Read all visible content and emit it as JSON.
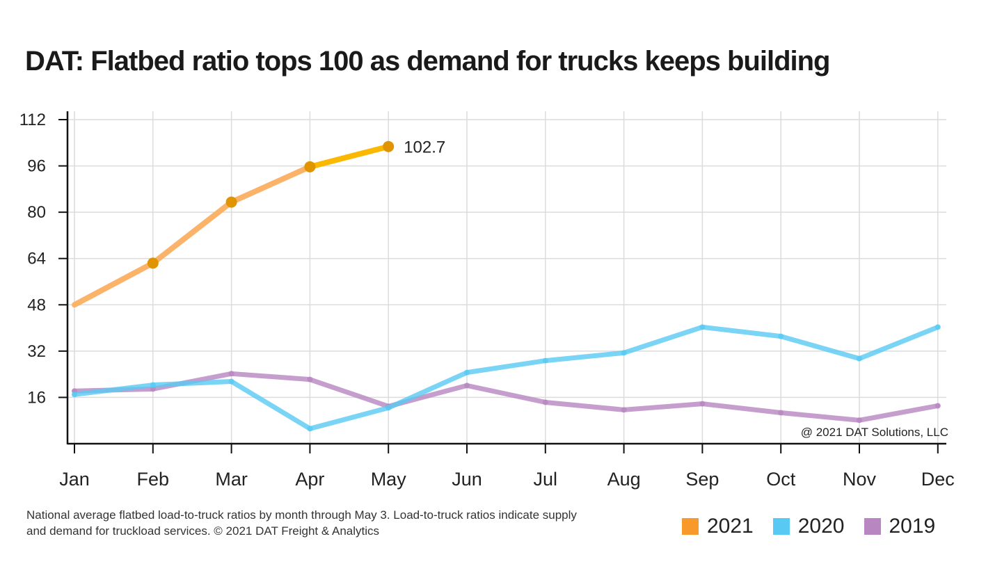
{
  "chart_data": {
    "type": "line",
    "title": "DAT: Flatbed ratio tops 100 as demand for trucks keeps building",
    "categories": [
      "Jan",
      "Feb",
      "Mar",
      "Apr",
      "May",
      "Jun",
      "Jul",
      "Aug",
      "Sep",
      "Oct",
      "Nov",
      "Dec"
    ],
    "yticks": [
      16,
      32,
      48,
      64,
      80,
      96,
      112
    ],
    "ylim": [
      0,
      112
    ],
    "grid": true,
    "legend_position": "bottom-right",
    "series": [
      {
        "name": "2021",
        "color": "#F7992B",
        "line_color": "#FBB36A",
        "highlight_color": "#FBB800",
        "marker_color": "#E09400",
        "values": [
          48,
          62.4,
          83.5,
          95.7,
          102.7,
          null,
          null,
          null,
          null,
          null,
          null,
          null
        ]
      },
      {
        "name": "2020",
        "color": "#57C9F2",
        "values": [
          17,
          20.3,
          21.5,
          5.2,
          12.4,
          24.6,
          28.7,
          31.4,
          40.3,
          37.1,
          29.4,
          40.3
        ]
      },
      {
        "name": "2019",
        "color": "#B886C1",
        "values": [
          18.2,
          18.9,
          24.2,
          22.2,
          12.9,
          20.1,
          14.3,
          11.7,
          13.8,
          10.7,
          8.1,
          13.1
        ]
      }
    ],
    "annotations": {
      "last_value_label": "102.7",
      "watermark": "@ 2021 DAT Solutions, LLC"
    }
  },
  "caption": "National average flatbed load-to-truck ratios by month through May 3. Load-to-truck ratios indicate supply and demand for truckload services. © 2021 DAT Freight & Analytics"
}
